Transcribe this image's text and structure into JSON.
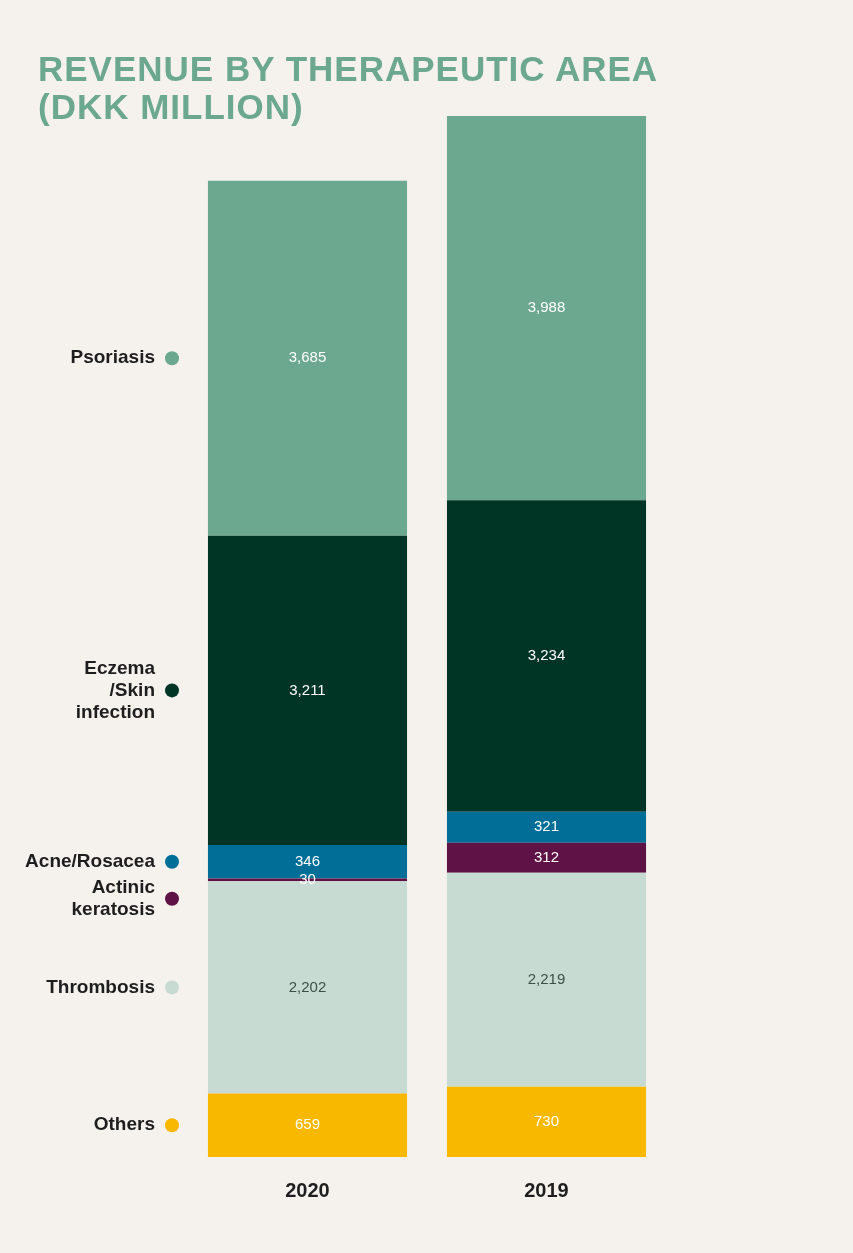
{
  "chart_data": {
    "type": "bar",
    "title": "REVENUE BY THERAPEUTIC AREA (DKK MILLION)",
    "categories": [
      "2020",
      "2019"
    ],
    "stacked": true,
    "legend": "left",
    "grid": false,
    "series": [
      {
        "name": "Others",
        "color": "#f9b800",
        "values": [
          659,
          730
        ],
        "value_labels": [
          "659",
          "730"
        ]
      },
      {
        "name": "Thrombosis",
        "color": "#c8dbd3",
        "values": [
          2202,
          2219
        ],
        "value_labels": [
          "2,202",
          "2,219"
        ]
      },
      {
        "name": "Actinic keratosis",
        "color": "#5e1245",
        "values": [
          30,
          312
        ],
        "value_labels": [
          "30",
          "312"
        ]
      },
      {
        "name": "Acne/Rosacea",
        "color": "#006e96",
        "values": [
          346,
          321
        ],
        "value_labels": [
          "346",
          "321"
        ]
      },
      {
        "name": "Eczema /Skin infection",
        "color": "#003526",
        "values": [
          3211,
          3234
        ],
        "value_labels": [
          "3,211",
          "3,234"
        ]
      },
      {
        "name": "Psoriasis",
        "color": "#6ba88f",
        "values": [
          3685,
          3988
        ],
        "value_labels": [
          "3,685",
          "3,988"
        ]
      }
    ]
  }
}
